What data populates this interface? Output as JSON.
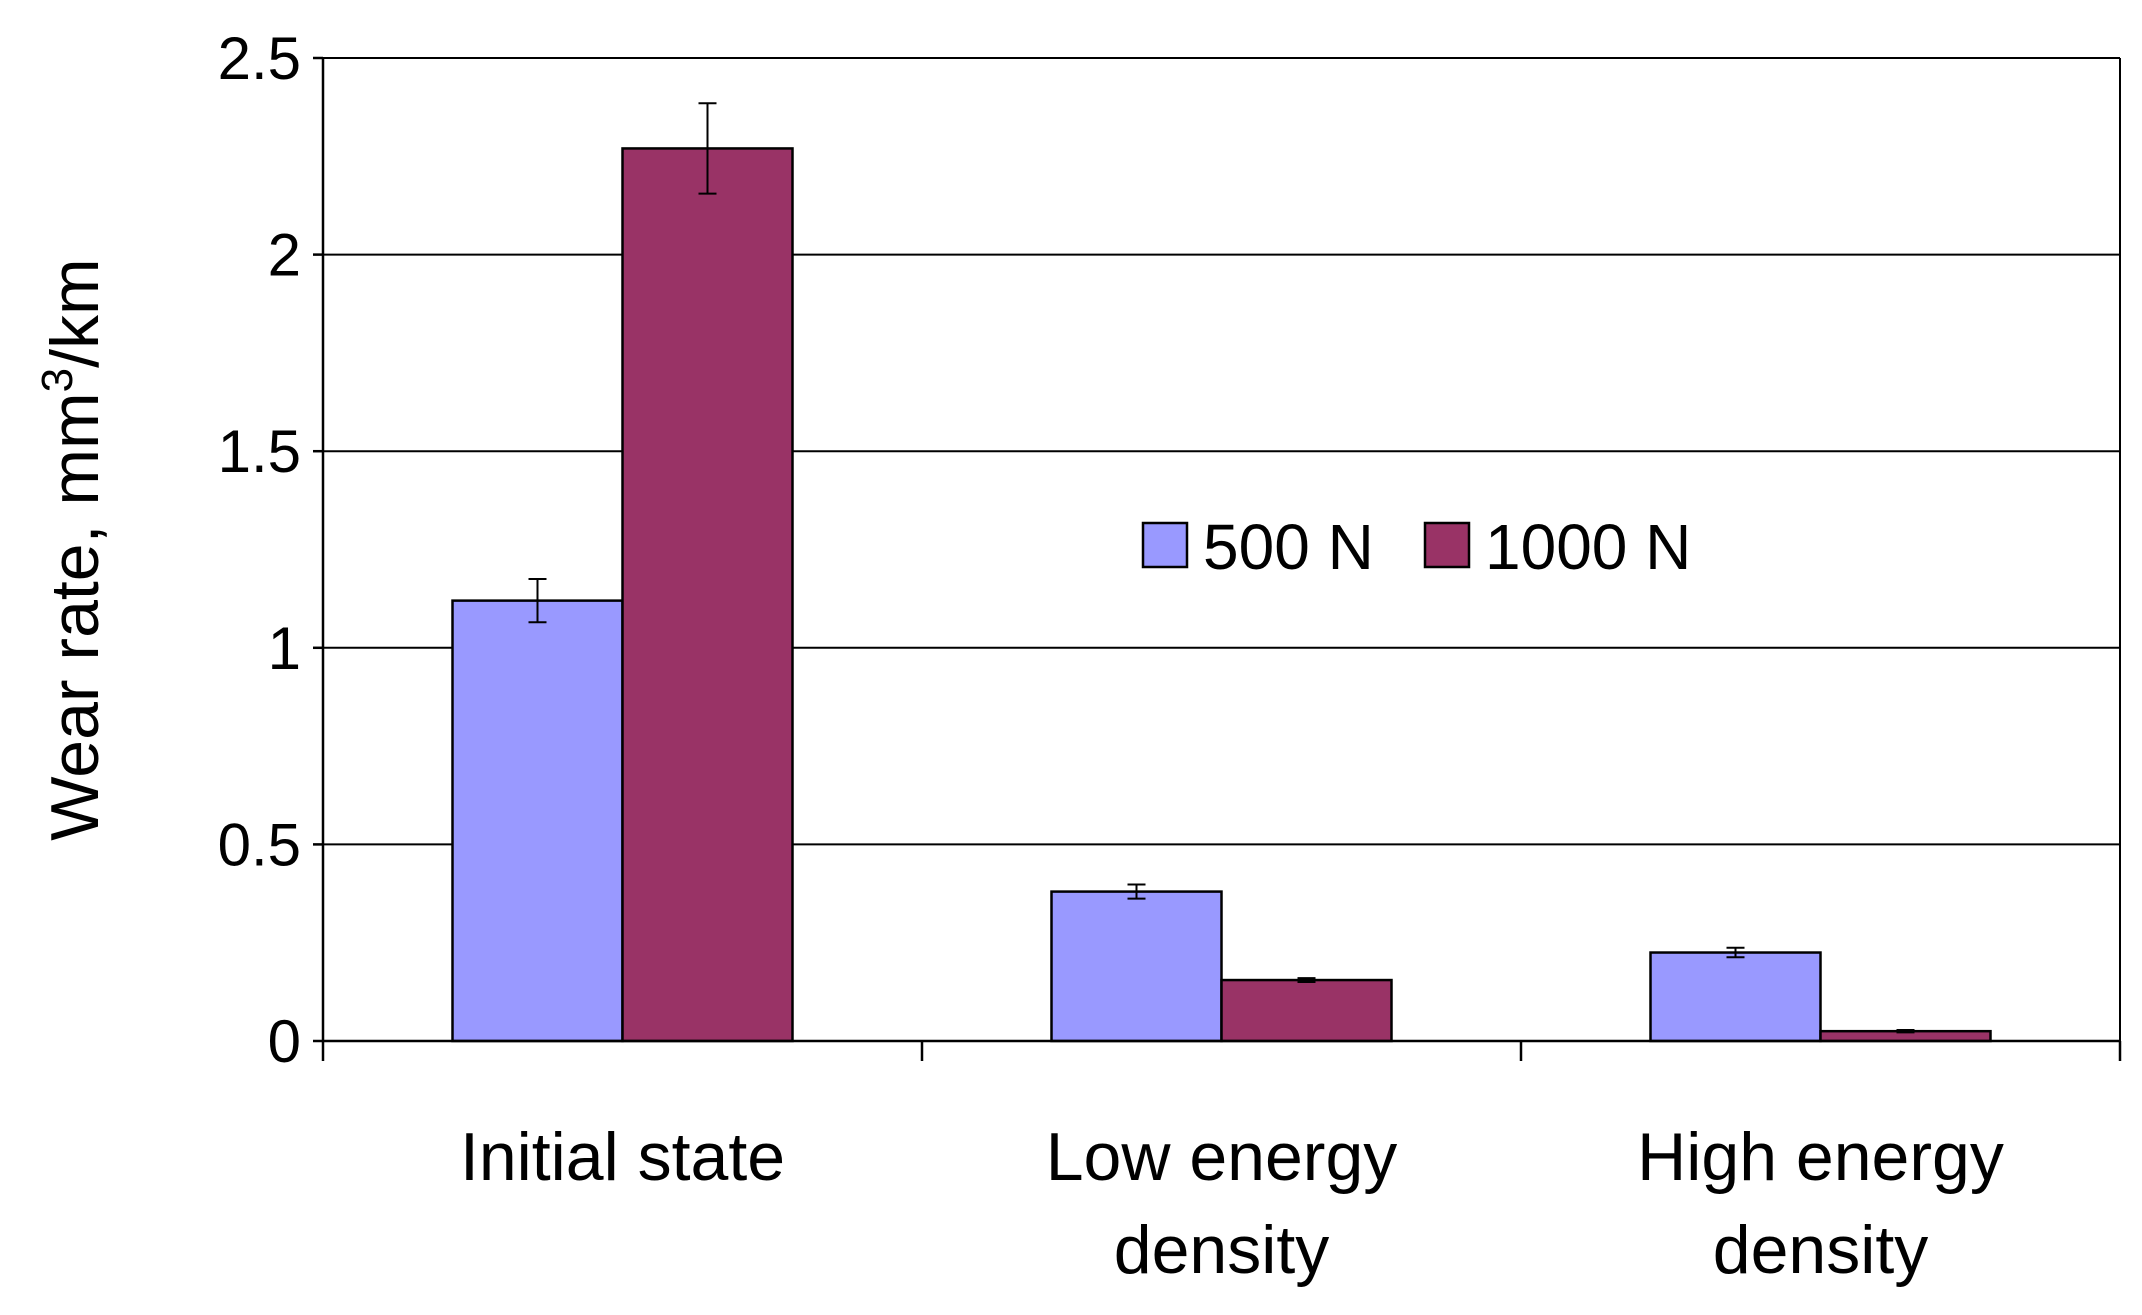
{
  "chart_data": {
    "type": "bar",
    "title": "",
    "ylabel_prefix": "Wear rate, mm",
    "ylabel_superscript": "3",
    "ylabel_suffix": "/km",
    "ylim": [
      0,
      2.5
    ],
    "yticks": [
      0,
      0.5,
      1,
      1.5,
      2,
      2.5
    ],
    "ytick_labels": [
      "0",
      "0.5",
      "1",
      "1.5",
      "2",
      "2.5"
    ],
    "grid": true,
    "legend_position": "center-right",
    "categories": [
      [
        "Initial state"
      ],
      [
        "Low energy",
        "density"
      ],
      [
        "High energy",
        "density"
      ]
    ],
    "series": [
      {
        "name": "500 N",
        "color": "#9999FF",
        "values": [
          1.12,
          0.38,
          0.225
        ],
        "errors": [
          0.055,
          0.018,
          0.012
        ]
      },
      {
        "name": "1000 N",
        "color": "#993366",
        "values": [
          2.27,
          0.155,
          0.025
        ],
        "errors": [
          0.115,
          0.005,
          0.003
        ]
      }
    ]
  }
}
